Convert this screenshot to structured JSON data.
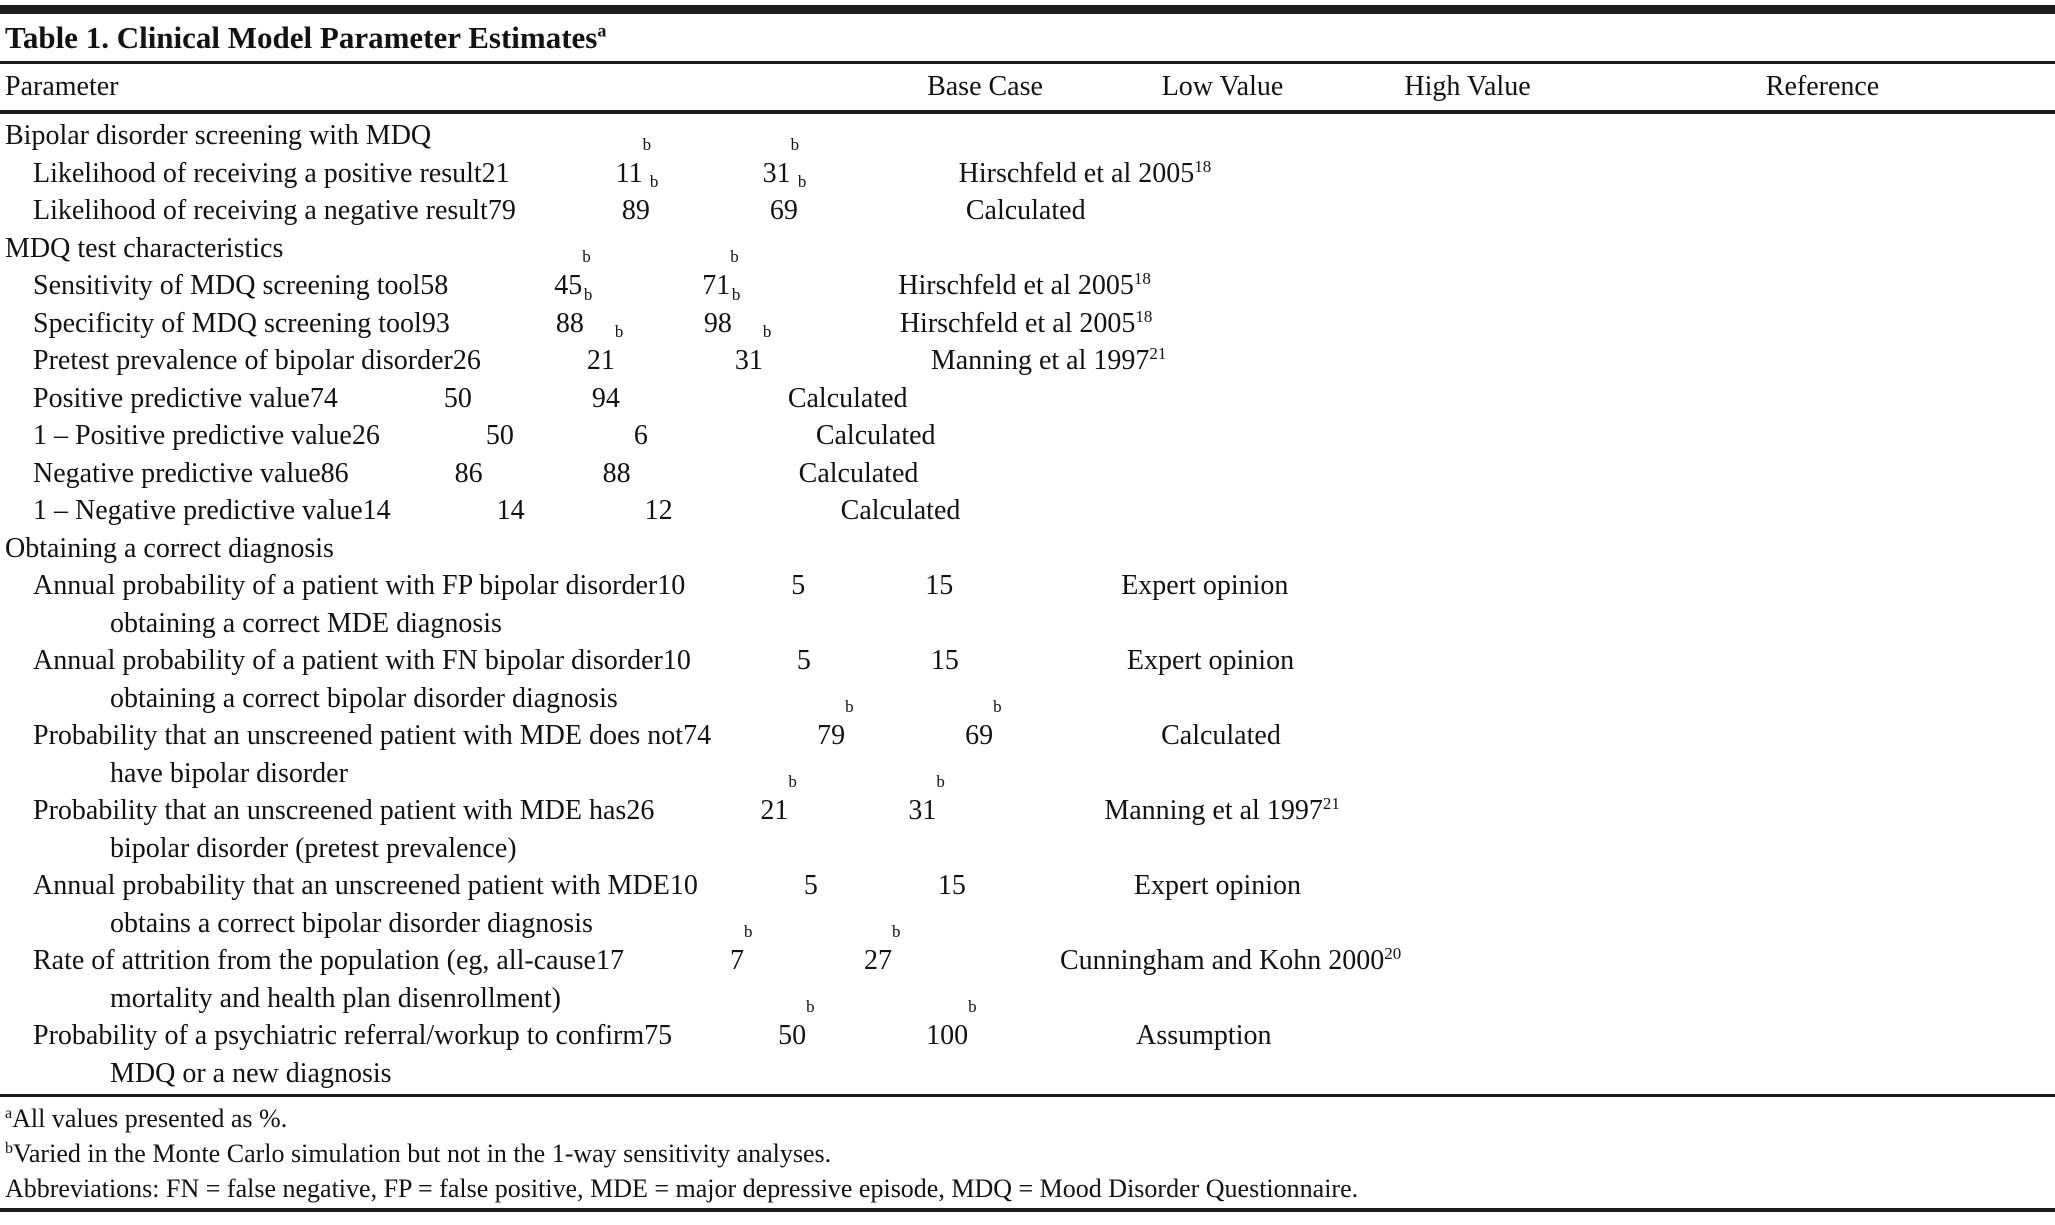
{
  "table": {
    "title": "Table 1. Clinical Model Parameter Estimates",
    "title_sup": "a",
    "headers": {
      "parameter": "Parameter",
      "base": "Base Case",
      "low": "Low Value",
      "high": "High Value",
      "reference": "Reference"
    }
  },
  "rows": [
    {
      "type": "section",
      "label": "Bipolar disorder screening with MDQ",
      "cont": "",
      "base": "",
      "base_sup": "",
      "low": "",
      "low_sup": "",
      "high": "",
      "high_sup": "",
      "ref": "",
      "ref_sup": ""
    },
    {
      "type": "param",
      "label": "Likelihood of receiving a positive result",
      "cont": "",
      "base": "21",
      "base_sup": "",
      "low": "11",
      "low_sup": "b",
      "high": "31",
      "high_sup": "b",
      "ref": "Hirschfeld et al 2005",
      "ref_sup": "18"
    },
    {
      "type": "param",
      "label": "Likelihood of receiving a negative result",
      "cont": "",
      "base": "79",
      "base_sup": "",
      "low": "89",
      "low_sup": "b",
      "high": "69",
      "high_sup": "b",
      "ref": "Calculated",
      "ref_sup": ""
    },
    {
      "type": "section",
      "label": "MDQ test characteristics",
      "cont": "",
      "base": "",
      "base_sup": "",
      "low": "",
      "low_sup": "",
      "high": "",
      "high_sup": "",
      "ref": "",
      "ref_sup": ""
    },
    {
      "type": "param",
      "label": "Sensitivity of MDQ screening tool",
      "cont": "",
      "base": "58",
      "base_sup": "",
      "low": "45",
      "low_sup": "b",
      "high": "71",
      "high_sup": "b",
      "ref": "Hirschfeld et al 2005",
      "ref_sup": "18"
    },
    {
      "type": "param",
      "label": "Specificity of MDQ screening tool",
      "cont": "",
      "base": "93",
      "base_sup": "",
      "low": "88",
      "low_sup": "b",
      "high": "98",
      "high_sup": "b",
      "ref": "Hirschfeld et al 2005",
      "ref_sup": "18"
    },
    {
      "type": "param",
      "label": "Pretest prevalence of bipolar disorder",
      "cont": "",
      "base": "26",
      "base_sup": "",
      "low": "21",
      "low_sup": "b",
      "high": "31",
      "high_sup": "b",
      "ref": "Manning et al 1997",
      "ref_sup": "21"
    },
    {
      "type": "param",
      "label": "Positive predictive value",
      "cont": "",
      "base": "74",
      "base_sup": "",
      "low": "50",
      "low_sup": "",
      "high": "94",
      "high_sup": "",
      "ref": "Calculated",
      "ref_sup": ""
    },
    {
      "type": "param",
      "label": "1 – Positive predictive value",
      "cont": "",
      "base": "26",
      "base_sup": "",
      "low": "50",
      "low_sup": "",
      "high": "6",
      "high_sup": "",
      "ref": "Calculated",
      "ref_sup": ""
    },
    {
      "type": "param",
      "label": "Negative predictive value",
      "cont": "",
      "base": "86",
      "base_sup": "",
      "low": "86",
      "low_sup": "",
      "high": "88",
      "high_sup": "",
      "ref": "Calculated",
      "ref_sup": ""
    },
    {
      "type": "param",
      "label": "1 – Negative predictive value",
      "cont": "",
      "base": "14",
      "base_sup": "",
      "low": "14",
      "low_sup": "",
      "high": "12",
      "high_sup": "",
      "ref": "Calculated",
      "ref_sup": ""
    },
    {
      "type": "section",
      "label": "Obtaining a correct diagnosis",
      "cont": "",
      "base": "",
      "base_sup": "",
      "low": "",
      "low_sup": "",
      "high": "",
      "high_sup": "",
      "ref": "",
      "ref_sup": ""
    },
    {
      "type": "param",
      "label": "Annual probability of a patient with FP bipolar disorder",
      "cont": "obtaining a correct MDE diagnosis",
      "base": "10",
      "base_sup": "",
      "low": "5",
      "low_sup": "",
      "high": "15",
      "high_sup": "",
      "ref": "Expert opinion",
      "ref_sup": ""
    },
    {
      "type": "param",
      "label": "Annual probability of a patient with FN bipolar disorder",
      "cont": "obtaining a correct bipolar disorder diagnosis",
      "base": "10",
      "base_sup": "",
      "low": "5",
      "low_sup": "",
      "high": "15",
      "high_sup": "",
      "ref": "Expert opinion",
      "ref_sup": ""
    },
    {
      "type": "param",
      "label": "Probability that an unscreened patient with MDE does not",
      "cont": "have bipolar disorder",
      "base": "74",
      "base_sup": "",
      "low": "79",
      "low_sup": "b",
      "high": "69",
      "high_sup": "b",
      "ref": "Calculated",
      "ref_sup": ""
    },
    {
      "type": "param",
      "label": "Probability that an unscreened patient with MDE has",
      "cont": "bipolar disorder (pretest prevalence)",
      "base": "26",
      "base_sup": "",
      "low": "21",
      "low_sup": "b",
      "high": "31",
      "high_sup": "b",
      "ref": "Manning et al 1997",
      "ref_sup": "21"
    },
    {
      "type": "param",
      "label": "Annual probability that an unscreened patient with MDE",
      "cont": "obtains a correct bipolar disorder diagnosis",
      "base": "10",
      "base_sup": "",
      "low": "5",
      "low_sup": "",
      "high": "15",
      "high_sup": "",
      "ref": "Expert opinion",
      "ref_sup": ""
    },
    {
      "type": "param",
      "label": "Rate of attrition from the population (eg, all-cause",
      "cont": "mortality and health plan disenrollment)",
      "base": "17",
      "base_sup": "",
      "low": "7",
      "low_sup": "b",
      "high": "27",
      "high_sup": "b",
      "ref": "Cunningham and Kohn 2000",
      "ref_sup": "20"
    },
    {
      "type": "param",
      "label": "Probability of a psychiatric referral/workup to confirm",
      "cont": "MDQ or a new diagnosis",
      "base": "75",
      "base_sup": "",
      "low": "50",
      "low_sup": "b",
      "high": "100",
      "high_sup": "b",
      "ref": "Assumption",
      "ref_sup": ""
    }
  ],
  "footnotes": [
    {
      "sup": "a",
      "text": "All values presented as %."
    },
    {
      "sup": "b",
      "text": "Varied in the Monte Carlo simulation but not in the 1-way sensitivity analyses."
    },
    {
      "sup": "",
      "text": "Abbreviations: FN = false negative, FP = false positive, MDE = major depressive episode, MDQ = Mood Disorder Questionnaire."
    }
  ]
}
